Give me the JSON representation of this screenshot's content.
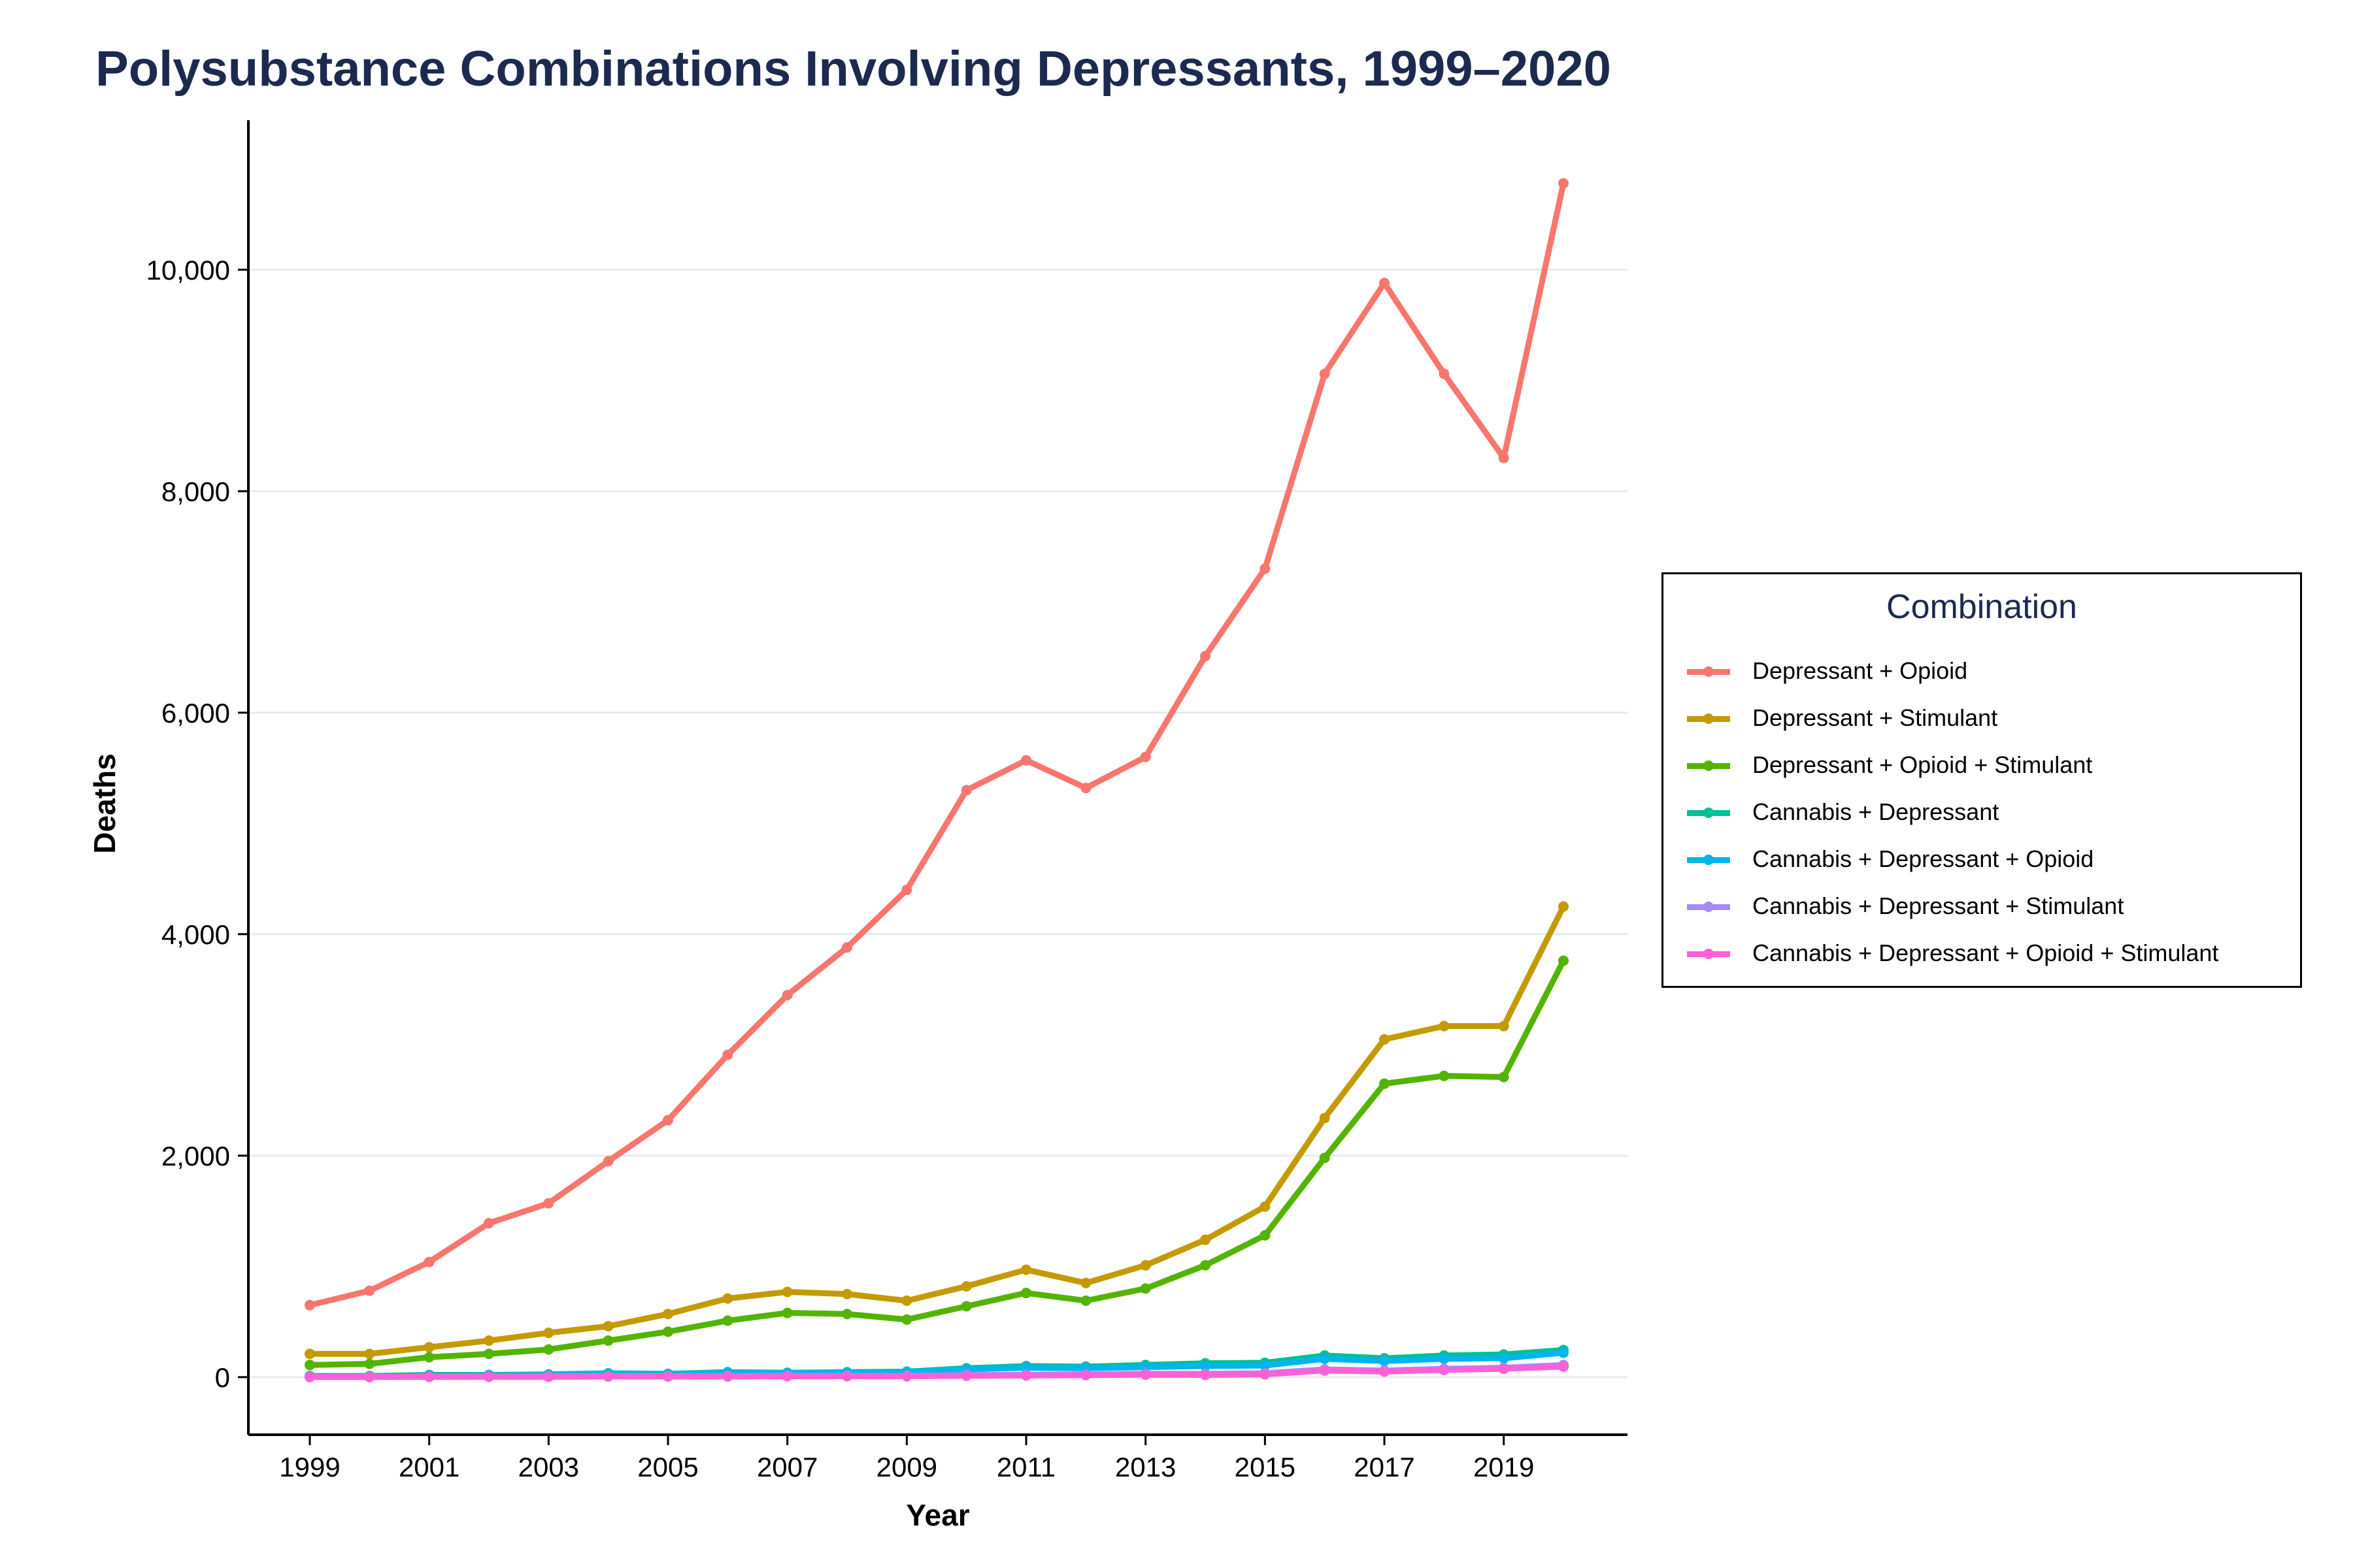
{
  "chart_data": {
    "type": "line",
    "title": "Polysubstance Combinations Involving Depressants, 1999–2020",
    "xlabel": "Year",
    "ylabel": "Deaths",
    "x": [
      1999,
      2000,
      2001,
      2002,
      2003,
      2004,
      2005,
      2006,
      2007,
      2008,
      2009,
      2010,
      2011,
      2012,
      2013,
      2014,
      2015,
      2016,
      2017,
      2018,
      2019,
      2020
    ],
    "x_tick_labels": [
      "1999",
      "2001",
      "2003",
      "2005",
      "2007",
      "2009",
      "2011",
      "2013",
      "2015",
      "2017",
      "2019"
    ],
    "y_tick_labels": [
      "0",
      "2,000",
      "4,000",
      "6,000",
      "8,000",
      "10,000"
    ],
    "y_ticks": [
      0,
      2000,
      4000,
      6000,
      8000,
      10000
    ],
    "xlim": [
      1999,
      2020
    ],
    "ylim": [
      -520,
      11350
    ],
    "grid": "horizontal",
    "legend": {
      "title": "Combination",
      "placement": "right"
    },
    "series": [
      {
        "name": "Depressant + Opioid",
        "color": "#F8766D",
        "values": [
          650,
          780,
          1040,
          1390,
          1570,
          1950,
          2320,
          2910,
          3450,
          3880,
          4400,
          5300,
          5570,
          5320,
          5600,
          6510,
          7300,
          9060,
          9880,
          9060,
          8300,
          10780
        ]
      },
      {
        "name": "Depressant + Stimulant",
        "color": "#C49A00",
        "values": [
          210,
          210,
          270,
          330,
          400,
          460,
          570,
          710,
          770,
          750,
          690,
          820,
          970,
          850,
          1010,
          1240,
          1540,
          2340,
          3050,
          3170,
          3170,
          4250
        ]
      },
      {
        "name": "Depressant + Opioid + Stimulant",
        "color": "#53B400",
        "values": [
          110,
          120,
          180,
          210,
          250,
          330,
          410,
          510,
          580,
          570,
          520,
          640,
          760,
          690,
          800,
          1010,
          1280,
          1980,
          2650,
          2720,
          2710,
          3760
        ]
      },
      {
        "name": "Cannabis + Depressant",
        "color": "#00C094",
        "values": [
          10,
          10,
          20,
          20,
          25,
          35,
          30,
          45,
          40,
          45,
          50,
          80,
          100,
          95,
          110,
          125,
          130,
          195,
          170,
          195,
          205,
          245
        ]
      },
      {
        "name": "Cannabis + Depressant + Opioid",
        "color": "#00B6EB",
        "values": [
          5,
          5,
          10,
          15,
          20,
          30,
          25,
          40,
          35,
          40,
          45,
          70,
          85,
          80,
          90,
          100,
          105,
          165,
          145,
          165,
          170,
          220
        ]
      },
      {
        "name": "Cannabis + Depressant + Stimulant",
        "color": "#A58AFF",
        "values": [
          2,
          2,
          4,
          5,
          6,
          8,
          8,
          10,
          12,
          12,
          12,
          18,
          22,
          25,
          30,
          30,
          35,
          70,
          60,
          75,
          85,
          110
        ]
      },
      {
        "name": "Cannabis + Depressant + Opioid + Stimulant",
        "color": "#FB61D7",
        "values": [
          1,
          1,
          2,
          3,
          3,
          5,
          5,
          6,
          8,
          8,
          8,
          12,
          15,
          18,
          22,
          20,
          25,
          60,
          50,
          65,
          75,
          95
        ]
      }
    ]
  }
}
